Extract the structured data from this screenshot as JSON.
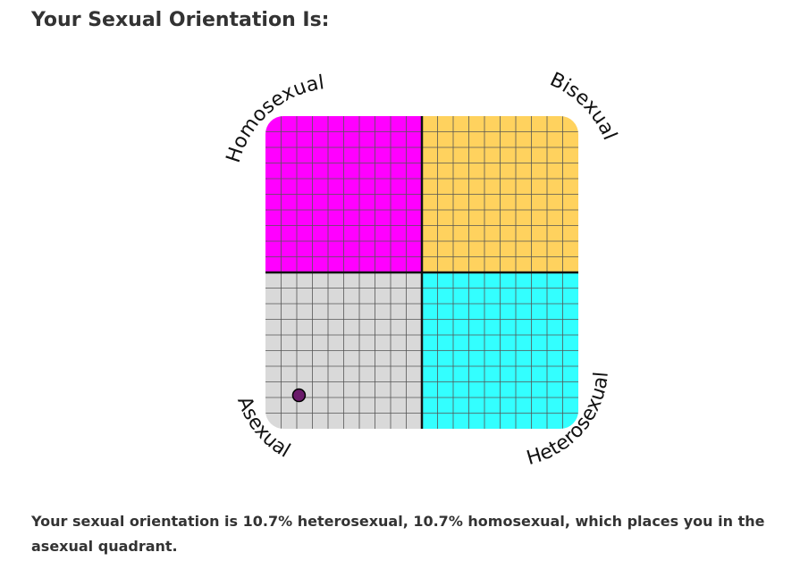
{
  "heading": "Your Sexual Orientation Is:",
  "result_text": "Your sexual orientation is 10.7% heterosexual, 10.7% homosexual, which places you in the asexual quadrant.",
  "colors": {
    "homosexual": "#ff00ff",
    "bisexual": "#ffd25e",
    "asexual": "#d9d9d9",
    "heterosexual": "#33ffff",
    "grid_line": "#555555",
    "axis_line": "#111111",
    "marker": "#6a1a6a"
  },
  "chart_data": {
    "type": "scatter",
    "title": "",
    "corner_labels": {
      "top_left": "Homosexual",
      "top_right": "Bisexual",
      "bottom_left": "Asexual",
      "bottom_right": "Heterosexual"
    },
    "xlabel": "",
    "ylabel": "",
    "x_axis_meaning": "heterosexual %",
    "y_axis_meaning": "homosexual %",
    "xlim": [
      0,
      100
    ],
    "ylim": [
      0,
      100
    ],
    "grid": true,
    "grid_divisions": 20,
    "points": [
      {
        "x": 10.7,
        "y": 10.7
      }
    ]
  }
}
